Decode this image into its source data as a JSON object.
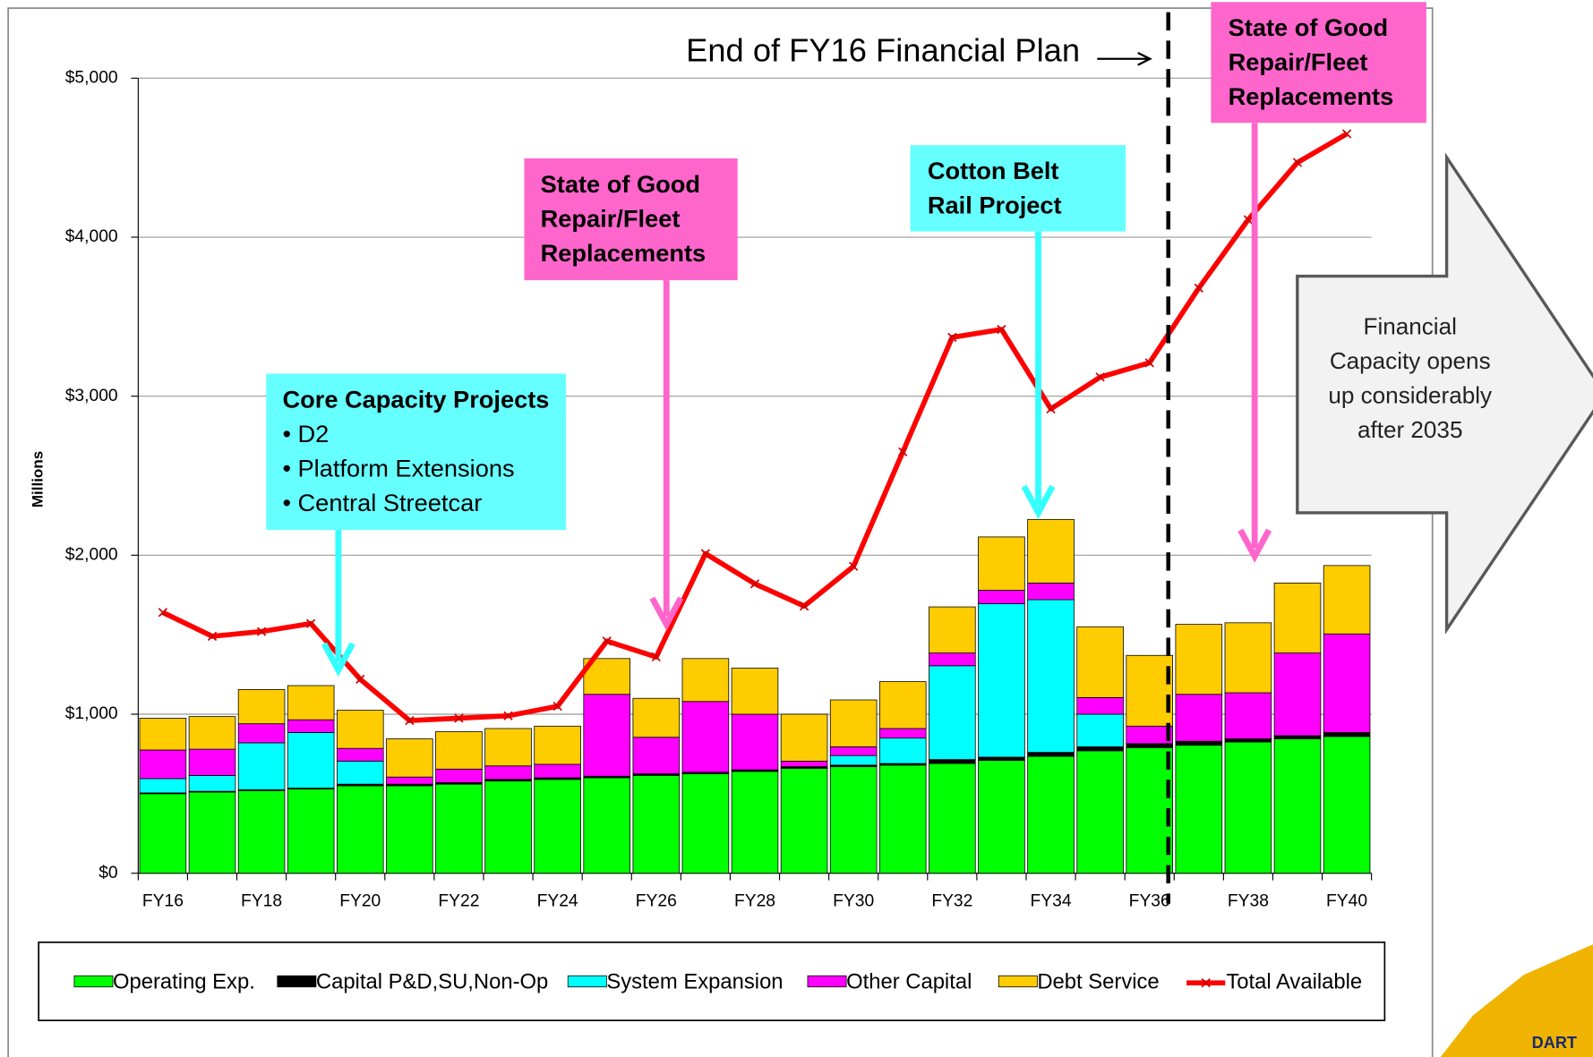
{
  "chart_data": {
    "type": "stacked_bar_line",
    "ylabel": "Millions",
    "categories": [
      "FY16",
      null,
      "FY18",
      null,
      "FY20",
      null,
      "FY22",
      null,
      "FY24",
      null,
      "FY26",
      null,
      "FY28",
      null,
      "FY30",
      null,
      "FY32",
      null,
      "FY34",
      null,
      "FY36",
      null,
      "FY38",
      null,
      "FY40"
    ],
    "ylim": [
      0,
      5000
    ],
    "yticks": [
      {
        "value": 0,
        "label": "$0"
      },
      {
        "value": 1000,
        "label": "$1,000"
      },
      {
        "value": 2000,
        "label": "$2,000"
      },
      {
        "value": 3000,
        "label": "$3,000"
      },
      {
        "value": 4000,
        "label": "$4,000"
      },
      {
        "value": 5000,
        "label": "$5,000"
      }
    ],
    "grid": true,
    "series": [
      {
        "name": "Operating Exp.",
        "color": "#00ff00",
        "values": [
          500,
          510,
          520,
          530,
          550,
          550,
          560,
          580,
          590,
          600,
          615,
          625,
          640,
          660,
          670,
          680,
          690,
          710,
          735,
          770,
          790,
          805,
          825,
          845,
          860
        ]
      },
      {
        "name": "Capital P&D,SU,Non-Op",
        "color": "#000000",
        "values": [
          5,
          5,
          5,
          5,
          10,
          10,
          10,
          10,
          10,
          10,
          10,
          10,
          10,
          10,
          10,
          10,
          25,
          20,
          25,
          25,
          25,
          25,
          20,
          20,
          25
        ]
      },
      {
        "name": "System Expansion",
        "color": "#00ffff",
        "values": [
          90,
          100,
          295,
          350,
          145,
          0,
          0,
          0,
          0,
          0,
          0,
          0,
          0,
          0,
          60,
          160,
          590,
          965,
          960,
          205,
          0,
          0,
          0,
          0,
          0
        ]
      },
      {
        "name": "Other Capital",
        "color": "#ff00ff",
        "values": [
          180,
          165,
          120,
          80,
          80,
          45,
          85,
          85,
          85,
          515,
          230,
          445,
          350,
          35,
          55,
          60,
          80,
          85,
          105,
          105,
          110,
          295,
          290,
          520,
          620
        ]
      },
      {
        "name": "Debt Service",
        "color": "#ffcc00",
        "values": [
          200,
          205,
          215,
          215,
          240,
          240,
          235,
          235,
          240,
          225,
          245,
          270,
          290,
          295,
          295,
          295,
          290,
          335,
          400,
          445,
          445,
          440,
          440,
          440,
          430
        ]
      }
    ],
    "line": {
      "name": "Total Available",
      "color": "#ff0000",
      "values": [
        1640,
        1490,
        1520,
        1570,
        1220,
        960,
        975,
        990,
        1050,
        1460,
        1360,
        2010,
        1820,
        1680,
        1930,
        2650,
        3370,
        3420,
        2920,
        3120,
        3210,
        3680,
        4110,
        4470,
        4650
      ]
    },
    "plan_end_label": "End of FY16 Financial Plan",
    "annotations": [
      {
        "lines": [
          "Core Capacity Projects",
          "• D2",
          "• Platform Extensions",
          "• Central Streetcar"
        ]
      },
      {
        "lines": [
          "State of Good",
          "Repair/Fleet",
          "Replacements"
        ]
      },
      {
        "lines": [
          "Cotton Belt",
          "Rail Project"
        ]
      },
      {
        "lines": [
          "State of Good",
          "Repair/Fleet",
          "Replacements"
        ]
      }
    ],
    "callout": [
      "Financial",
      "Capacity opens",
      "up considerably",
      "after 2035"
    ],
    "logo": "DART"
  }
}
